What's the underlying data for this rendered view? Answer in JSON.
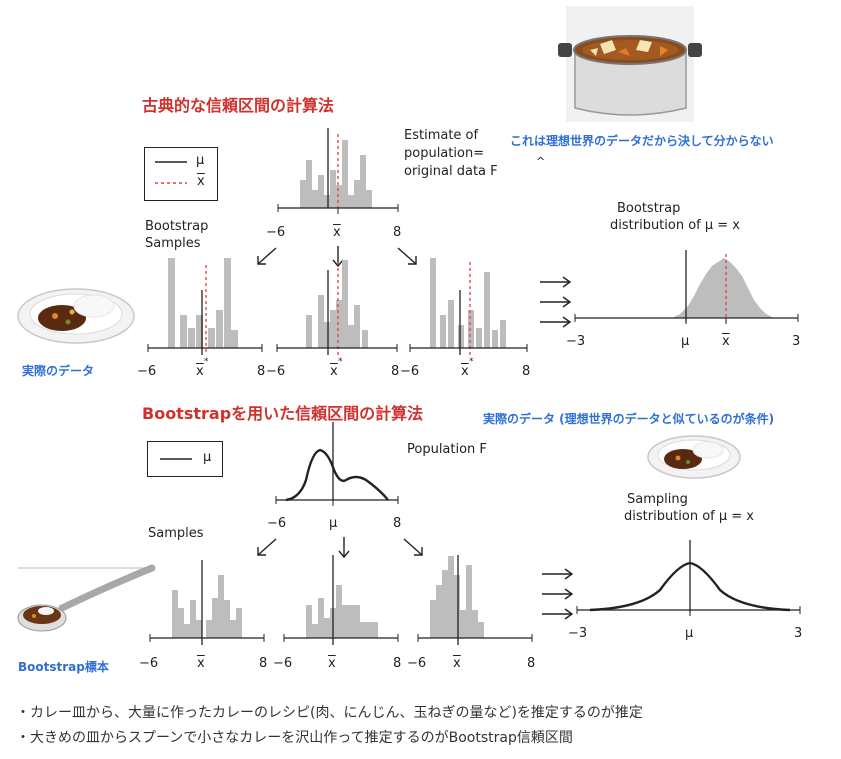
{
  "top_section": {
    "title": "古典的な信頼区間の計算法",
    "pot_note": "これは理想世界のデータだから決して分からない",
    "estimate_label": [
      "Estimate of",
      "population=",
      "original data F"
    ],
    "f_hat_mark": "^",
    "legend": {
      "mu": "μ",
      "xbar": "x"
    },
    "bootstrap_samples_label": [
      "Bootstrap",
      "Samples"
    ],
    "top_ticks": {
      "left": "−6",
      "mid": "x",
      "right": "8"
    },
    "sample_ticks": [
      {
        "left": "−6",
        "mid": "x",
        "right": "8"
      },
      {
        "left": "−6",
        "mid": "x",
        "right": "8"
      },
      {
        "left": "−6",
        "mid": "x",
        "right": "8"
      }
    ],
    "star": "*",
    "plate_label": "実際のデータ",
    "dist_label": [
      "Bootstrap",
      "distribution of  μ  = x"
    ],
    "dist_ticks": {
      "left": "−3",
      "mu": "μ",
      "xbar": "x",
      "right": "3"
    }
  },
  "bottom_section": {
    "title": "Bootstrapを用いた信頼区間の計算法",
    "plate_note": "実際のデータ (理想世界のデータと似ているのが条件)",
    "legend": {
      "mu": "μ"
    },
    "population_label": "Population F",
    "pop_ticks": {
      "left": "−6",
      "mid": "μ",
      "right": "8"
    },
    "samples_label": "Samples",
    "sample_ticks": [
      {
        "left": "−6",
        "mid": "x",
        "right": "8"
      },
      {
        "left": "−6",
        "mid": "x",
        "right": "8"
      },
      {
        "left": "−6",
        "mid": "x",
        "right": "8"
      }
    ],
    "spoon_label": "Bootstrap標本",
    "dist_label": [
      "Sampling",
      "distribution of  μ = x"
    ],
    "dist_ticks": {
      "left": "−3",
      "mu": "μ",
      "right": "3"
    }
  },
  "notes": [
    "・カレー皿から、大量に作ったカレーのレシピ(肉、にんじん、玉ねぎの量など)を推定するのが推定",
    "・大きめの皿からスプーンで小さなカレーを沢山作って推定するのがBootstrap信頼区間"
  ],
  "colors": {
    "title_red": "#d0312d",
    "note_blue": "#2f6fd6",
    "bar_gray": "#bdbdbd",
    "dash_red": "#e04040"
  }
}
